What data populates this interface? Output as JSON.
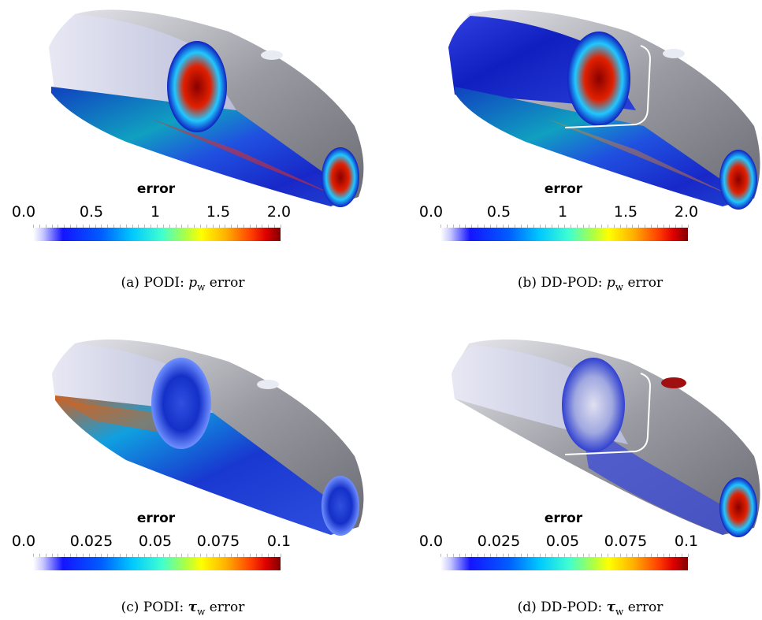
{
  "panels": [
    {
      "colorbar_title": "error",
      "ticks": [
        "0.0",
        "0.5",
        "1",
        "1.5",
        "2.0"
      ],
      "caption_prefix": "(a)  PODI: ",
      "caption_symbol": "p",
      "caption_sub": "w",
      "caption_suffix": " error"
    },
    {
      "colorbar_title": "error",
      "ticks": [
        "0.0",
        "0.5",
        "1",
        "1.5",
        "2.0"
      ],
      "caption_prefix": "(b)  DD-POD: ",
      "caption_symbol": "p",
      "caption_sub": "w",
      "caption_suffix": " error"
    },
    {
      "colorbar_title": "error",
      "ticks": [
        "0.0",
        "0.025",
        "0.05",
        "0.075",
        "0.1"
      ],
      "caption_prefix": "(c)  PODI: ",
      "caption_symbol": "τ",
      "caption_sub": "w",
      "caption_suffix": " error"
    },
    {
      "colorbar_title": "error",
      "ticks": [
        "0.0",
        "0.025",
        "0.05",
        "0.075",
        "0.1"
      ],
      "caption_prefix": "(d)  DD-POD: ",
      "caption_symbol": "τ",
      "caption_sub": "w",
      "caption_suffix": " error"
    }
  ],
  "colormap": {
    "stops": [
      "#ffffff",
      "#1414ff",
      "#00c8ff",
      "#ffff00",
      "#ff4000",
      "#800000"
    ]
  }
}
